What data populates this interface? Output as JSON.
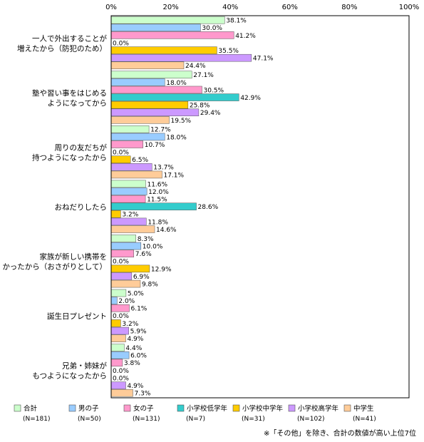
{
  "chart_data": {
    "type": "bar",
    "orientation": "horizontal",
    "xlim": [
      0,
      100
    ],
    "x_ticks": [
      "0%",
      "20%",
      "40%",
      "60%",
      "80%",
      "100%"
    ],
    "grid": false,
    "legend_position": "bottom",
    "categories": [
      [
        "一人で外出することが",
        "増えたから（防犯のため）"
      ],
      [
        "塾や習い事をはじめる",
        "ようになってから"
      ],
      [
        "周りの友だちが",
        "持つようになったから"
      ],
      [
        "おねだりしたら"
      ],
      [
        "家族が新しい携帯を",
        "かったから（おさがりとして）"
      ],
      [
        "誕生日プレゼント"
      ],
      [
        "兄弟・姉妹が",
        "もつようになったから"
      ]
    ],
    "series": [
      {
        "name": "合計",
        "n": "(N=181)",
        "color": "#ccffcc",
        "values": [
          38.1,
          27.1,
          12.7,
          11.6,
          8.3,
          5.0,
          4.4
        ]
      },
      {
        "name": "男の子",
        "n": "(N=50)",
        "color": "#99ccff",
        "values": [
          30.0,
          18.0,
          18.0,
          12.0,
          10.0,
          2.0,
          6.0
        ]
      },
      {
        "name": "女の子",
        "n": "(N=131)",
        "color": "#ff99cc",
        "values": [
          41.2,
          30.5,
          10.7,
          11.5,
          7.6,
          6.1,
          3.8
        ]
      },
      {
        "name": "小学校低学年",
        "n": "(N=7)",
        "color": "#33cccc",
        "values": [
          0.0,
          42.9,
          0.0,
          28.6,
          0.0,
          0.0,
          0.0
        ]
      },
      {
        "name": "小学校中学年",
        "n": "(N=31)",
        "color": "#ffcc00",
        "values": [
          35.5,
          25.8,
          6.5,
          3.2,
          12.9,
          3.2,
          0.0
        ]
      },
      {
        "name": "小学校高学年",
        "n": "(N=102)",
        "color": "#cc99ff",
        "values": [
          47.1,
          29.4,
          13.7,
          11.8,
          6.9,
          5.9,
          4.9
        ]
      },
      {
        "name": "中学生",
        "n": "(N=41)",
        "color": "#ffcc99",
        "values": [
          24.4,
          19.5,
          17.1,
          14.6,
          9.8,
          4.9,
          7.3
        ]
      }
    ],
    "note": "※「その他」を除き、合計の数値が高い上位7位"
  }
}
